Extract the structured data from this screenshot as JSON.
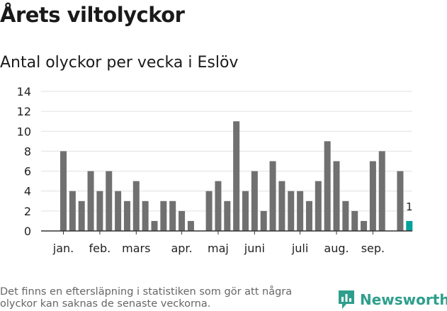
{
  "header": {
    "title": "Årets viltolyckor",
    "subtitle": "Antal olyckor per vecka i Eslöv"
  },
  "footer": {
    "note": "Det finns en eftersläpning i statistiken som gör att några olyckor kan saknas de senaste veckorna.",
    "brand": "Newsworthy"
  },
  "colors": {
    "bar": "#707070",
    "highlight": "#00a19a",
    "brand": "#2e9f8c",
    "grid": "#e0e0e0"
  },
  "icons": {
    "brand": "newsworthy-logo-icon"
  },
  "chart_data": {
    "type": "bar",
    "title": "Antal olyckor per vecka i Eslöv",
    "xlabel": "",
    "ylabel": "",
    "ylim": [
      0,
      14
    ],
    "yticks": [
      0,
      2,
      4,
      6,
      8,
      10,
      12,
      14
    ],
    "grid": true,
    "weeks": [
      1,
      2,
      3,
      4,
      5,
      6,
      7,
      8,
      9,
      10,
      11,
      12,
      13,
      14,
      15,
      16,
      17,
      18,
      19,
      20,
      21,
      22,
      23,
      24,
      25,
      26,
      27,
      28,
      29,
      30,
      31,
      32,
      33,
      34,
      35,
      36,
      37,
      38,
      39,
      40
    ],
    "values": [
      8,
      4,
      3,
      6,
      4,
      6,
      4,
      3,
      5,
      3,
      1,
      3,
      3,
      2,
      1,
      null,
      4,
      5,
      3,
      11,
      4,
      6,
      2,
      7,
      5,
      4,
      4,
      3,
      5,
      9,
      7,
      3,
      2,
      1,
      7,
      8,
      null,
      6,
      1,
      null
    ],
    "highlight_week": 39,
    "highlight_label": "1",
    "month_labels": [
      {
        "label": "jan.",
        "week": 1
      },
      {
        "label": "feb.",
        "week": 5
      },
      {
        "label": "mars",
        "week": 9
      },
      {
        "label": "apr.",
        "week": 14
      },
      {
        "label": "maj",
        "week": 18
      },
      {
        "label": "juni",
        "week": 22
      },
      {
        "label": "juli",
        "week": 27
      },
      {
        "label": "aug.",
        "week": 31
      },
      {
        "label": "sep.",
        "week": 35
      }
    ]
  }
}
